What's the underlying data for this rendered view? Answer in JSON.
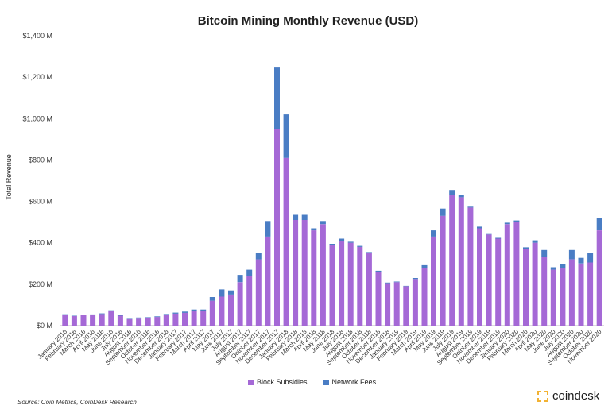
{
  "chart_data": {
    "type": "bar",
    "stacked": true,
    "title": "Bitcoin Mining Monthly Revenue (USD)",
    "ylabel": "Total Revenue",
    "xlabel": "",
    "ylim": [
      0,
      1400
    ],
    "yticks": [
      "$0 M",
      "$200 M",
      "$400 M",
      "$600 M",
      "$800 M",
      "$1,000 M",
      "$1,200 M",
      "$1,400 M"
    ],
    "legend_position": "bottom",
    "grid": false,
    "categories": [
      "January 2016",
      "February 2016",
      "March 2016",
      "April 2016",
      "May 2016",
      "June 2016",
      "July 2016",
      "August 2016",
      "September 2016",
      "October 2016",
      "November 2016",
      "December 2016",
      "January 2017",
      "February 2017",
      "March 2017",
      "April 2017",
      "May 2017",
      "June 2017",
      "July 2017",
      "August 2017",
      "September 2017",
      "October 2017",
      "November 2017",
      "December 2017",
      "January 2018",
      "February 2018",
      "March 2018",
      "April 2018",
      "May 2018",
      "June 2018",
      "July 2018",
      "August 2018",
      "September 2018",
      "October 2018",
      "November 2018",
      "December 2018",
      "January 2019",
      "February 2019",
      "March 2019",
      "April 2019",
      "May 2019",
      "June 2019",
      "July 2019",
      "August 2019",
      "September 2019",
      "October 2019",
      "November 2019",
      "December 2019",
      "January 2020",
      "February 2020",
      "March 2020",
      "April 2020",
      "May 2020",
      "June 2020",
      "July 2020",
      "August 2020",
      "September 2020",
      "October 2020",
      "November 2020"
    ],
    "series": [
      {
        "name": "Block Subsidies",
        "color": "#a569d6",
        "values": [
          53,
          46,
          50,
          52,
          56,
          70,
          48,
          35,
          37,
          39,
          42,
          52,
          58,
          62,
          70,
          70,
          120,
          140,
          150,
          210,
          240,
          320,
          430,
          950,
          810,
          510,
          510,
          460,
          490,
          390,
          410,
          400,
          380,
          350,
          260,
          205,
          210,
          190,
          225,
          280,
          430,
          530,
          630,
          620,
          570,
          470,
          440,
          420,
          490,
          500,
          370,
          400,
          330,
          270,
          280,
          320,
          300,
          305,
          460
        ],
        "colors_note": "purple"
      },
      {
        "name": "Network Fees",
        "color": "#4a7dc4",
        "values": [
          2,
          2,
          2,
          2,
          3,
          4,
          3,
          2,
          2,
          2,
          3,
          4,
          5,
          6,
          8,
          8,
          18,
          35,
          20,
          35,
          30,
          30,
          75,
          300,
          210,
          25,
          25,
          10,
          15,
          5,
          10,
          5,
          5,
          5,
          5,
          3,
          3,
          2,
          5,
          12,
          30,
          35,
          25,
          10,
          8,
          8,
          6,
          4,
          7,
          8,
          8,
          12,
          35,
          12,
          16,
          45,
          27,
          45,
          60
        ]
      }
    ]
  },
  "source_text": "Source: Coin Metrics, CoinDesk Research",
  "brand": {
    "name": "coindesk",
    "accent": "#f2b233"
  }
}
